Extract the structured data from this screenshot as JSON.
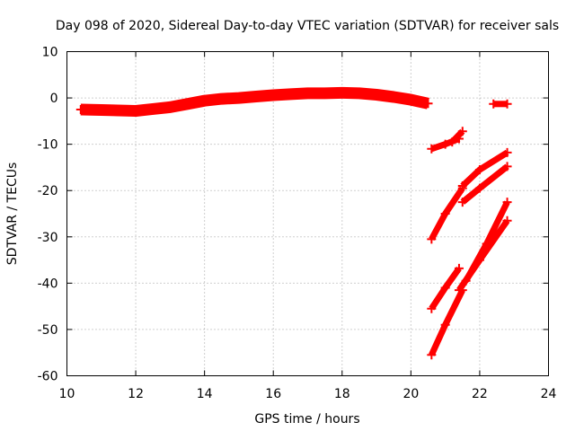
{
  "chart_data": {
    "type": "scatter",
    "title": "Day 098 of 2020, Sidereal Day-to-day VTEC variation (SDTVAR) for receiver sals",
    "xlabel": "GPS time / hours",
    "ylabel": "SDTVAR / TECUs",
    "xlim": [
      10,
      24
    ],
    "ylim": [
      -60,
      10
    ],
    "xticks": [
      "10",
      "12",
      "14",
      "16",
      "18",
      "20",
      "22",
      "24"
    ],
    "yticks": [
      "10",
      "0",
      "-10",
      "-20",
      "-30",
      "-40",
      "-50",
      "-60"
    ],
    "grid": true,
    "color": "#ff0000",
    "series": [
      {
        "x": [
          10.4,
          11.0,
          11.5,
          12.0,
          12.5,
          13.0,
          13.5,
          14.0,
          14.5,
          15.0,
          15.5,
          16.0,
          16.5,
          17.0,
          17.5,
          18.0,
          18.5,
          19.0,
          19.5,
          20.0,
          20.5
        ],
        "y": [
          -2.5,
          -2.6,
          -2.7,
          -2.8,
          -2.4,
          -2.0,
          -1.3,
          -0.6,
          -0.2,
          0.0,
          0.3,
          0.6,
          0.8,
          1.0,
          1.0,
          1.1,
          1.0,
          0.7,
          0.2,
          -0.4,
          -1.2
        ]
      },
      {
        "x": [
          20.6,
          21.0,
          21.4
        ],
        "y": [
          -11.0,
          -10.0,
          -8.8
        ]
      },
      {
        "x": [
          21.2,
          21.5
        ],
        "y": [
          -9.5,
          -7.2
        ]
      },
      {
        "x": [
          22.4,
          22.8
        ],
        "y": [
          -1.3,
          -1.3
        ]
      },
      {
        "x": [
          20.6,
          21.0,
          21.5
        ],
        "y": [
          -30.5,
          -25.0,
          -19.5
        ]
      },
      {
        "x": [
          21.5,
          22.0,
          22.8
        ],
        "y": [
          -19.0,
          -15.5,
          -11.8
        ]
      },
      {
        "x": [
          21.5,
          22.0,
          22.8
        ],
        "y": [
          -22.5,
          -19.5,
          -14.8
        ]
      },
      {
        "x": [
          20.6,
          21.0,
          21.4
        ],
        "y": [
          -45.5,
          -41.0,
          -36.8
        ]
      },
      {
        "x": [
          20.6,
          21.0,
          21.5
        ],
        "y": [
          -55.5,
          -49.0,
          -41.5
        ]
      },
      {
        "x": [
          21.4,
          22.0,
          22.8
        ],
        "y": [
          -41.5,
          -35.0,
          -26.5
        ]
      },
      {
        "x": [
          21.6,
          22.2,
          22.8
        ],
        "y": [
          -39.5,
          -31.5,
          -22.5
        ]
      }
    ]
  }
}
